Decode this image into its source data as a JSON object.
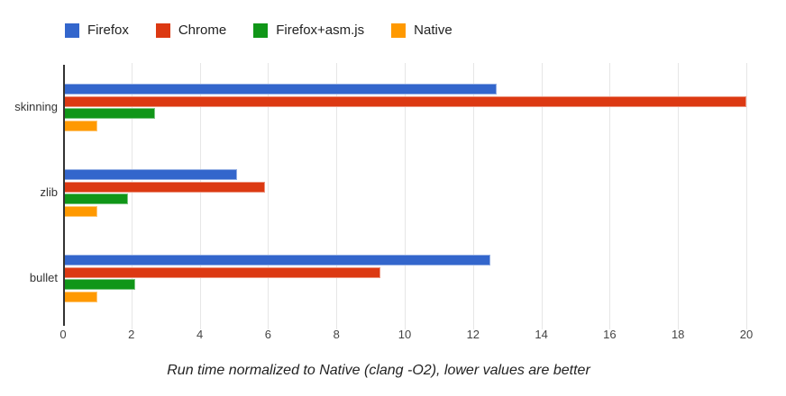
{
  "chart_data": {
    "type": "bar",
    "orientation": "horizontal",
    "title": "",
    "caption": "Run time normalized to Native (clang -O2), lower values are better",
    "categories": [
      "skinning",
      "zlib",
      "bullet"
    ],
    "series": [
      {
        "name": "Firefox",
        "color": "#3366CC",
        "values": [
          12.7,
          5.1,
          12.5
        ]
      },
      {
        "name": "Chrome",
        "color": "#DC3912",
        "values": [
          20.0,
          5.9,
          9.3
        ]
      },
      {
        "name": "Firefox+asm.js",
        "color": "#109618",
        "values": [
          2.7,
          1.9,
          2.1
        ]
      },
      {
        "name": "Native",
        "color": "#FF9900",
        "values": [
          1.0,
          1.0,
          1.0
        ]
      }
    ],
    "xlim": [
      0,
      20
    ],
    "x_ticks": [
      0,
      2,
      4,
      6,
      8,
      10,
      12,
      14,
      16,
      18,
      20
    ],
    "grid": true,
    "legend_position": "top",
    "colors": {
      "gridline": "#e6e6e6",
      "baseline": "#333333",
      "axis_text": "#444444",
      "legend_text": "#222222",
      "background": "#ffffff"
    }
  }
}
